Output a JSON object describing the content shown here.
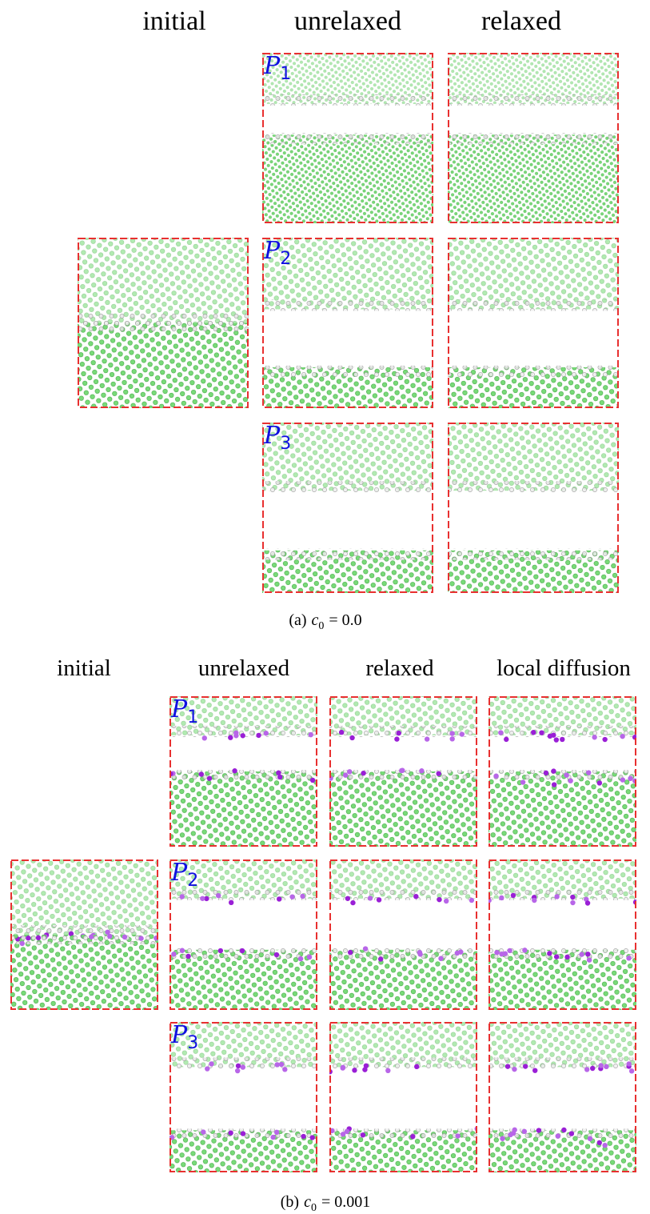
{
  "figure": {
    "panels": [
      {
        "columns": [
          "initial",
          "unrelaxed",
          "relaxed"
        ],
        "rows": [
          {
            "letter": "P",
            "sub": "1"
          },
          {
            "letter": "P",
            "sub": "2"
          },
          {
            "letter": "P",
            "sub": "3"
          }
        ],
        "caption": {
          "label": "(a)",
          "var": "c",
          "sub": "0",
          "rest": "= 0.0"
        }
      },
      {
        "columns": [
          "initial",
          "unrelaxed",
          "relaxed",
          "local diffusion"
        ],
        "rows": [
          {
            "letter": "P",
            "sub": "1"
          },
          {
            "letter": "P",
            "sub": "2"
          },
          {
            "letter": "P",
            "sub": "3"
          }
        ],
        "caption": {
          "label": "(b)",
          "var": "c",
          "sub": "0",
          "rest": "= 0.001"
        }
      }
    ]
  }
}
